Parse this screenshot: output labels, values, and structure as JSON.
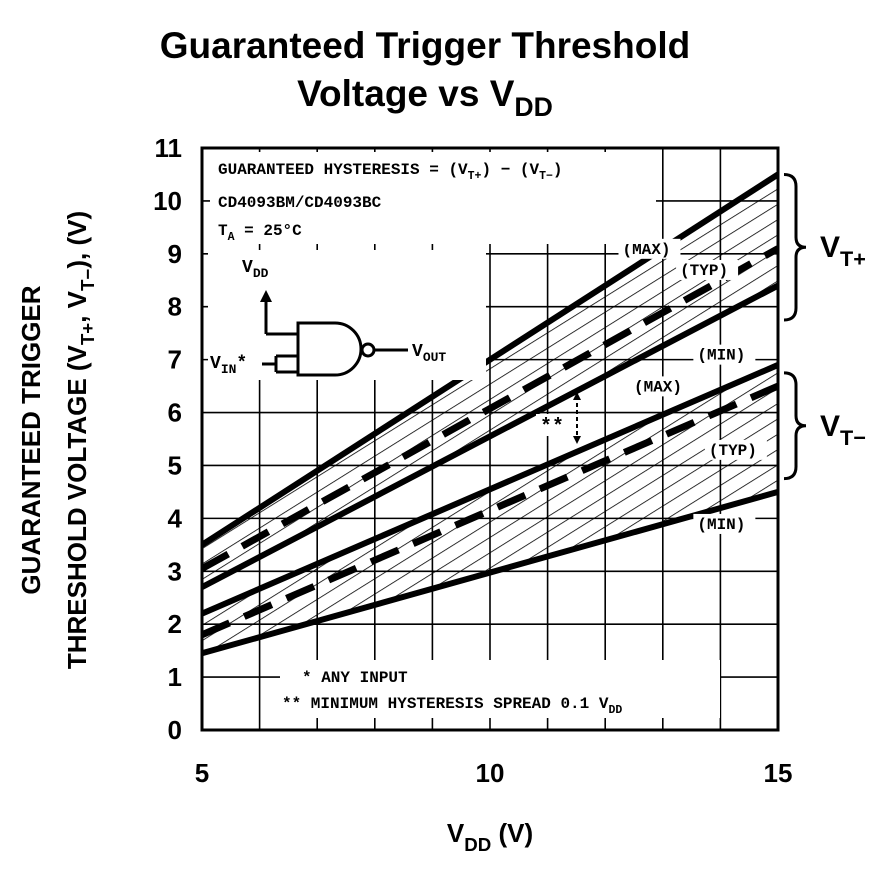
{
  "chart_data": {
    "type": "line",
    "title_line1": "Guaranteed Trigger Threshold",
    "title_line2_main": "Voltage vs V",
    "title_line2_sub": "DD",
    "xlabel_main": "V",
    "xlabel_sub": "DD",
    "xlabel_unit": " (V)",
    "ylabel_line1": "GUARANTEED TRIGGER",
    "ylabel_line2_a": "THRESHOLD VOLTAGE (V",
    "ylabel_line2_b": "T+",
    "ylabel_line2_c": ", V",
    "ylabel_line2_d": "T−",
    "ylabel_line2_e": "), (V)",
    "xlim": [
      5,
      15
    ],
    "ylim": [
      0,
      11
    ],
    "x_ticks": [
      5,
      10,
      15
    ],
    "x_gridlines": [
      5,
      6,
      7,
      8,
      9,
      10,
      11,
      12,
      13,
      14,
      15
    ],
    "y_ticks": [
      0,
      1,
      2,
      3,
      4,
      5,
      6,
      7,
      8,
      9,
      10,
      11
    ],
    "grid": true,
    "x": [
      5,
      15
    ],
    "series": [
      {
        "name": "(MAX)",
        "group": "VT+",
        "style": "solid",
        "values": [
          3.5,
          10.5
        ]
      },
      {
        "name": "(TYP)",
        "group": "VT+",
        "style": "dashed",
        "values": [
          3.05,
          9.1
        ]
      },
      {
        "name": "(MIN)",
        "group": "VT+",
        "style": "solid",
        "values": [
          2.7,
          8.4
        ]
      },
      {
        "name": "(MAX)",
        "group": "VT−",
        "style": "solid",
        "values": [
          2.2,
          6.9
        ]
      },
      {
        "name": "(TYP)",
        "group": "VT−",
        "style": "dashed",
        "values": [
          1.8,
          6.5
        ]
      },
      {
        "name": "(MIN)",
        "group": "VT−",
        "style": "solid",
        "values": [
          1.45,
          4.5
        ]
      }
    ],
    "curve_labels": [
      {
        "text": "(MAX)",
        "x": 12.3,
        "y": 9.0
      },
      {
        "text": "(TYP)",
        "x": 13.3,
        "y": 8.6
      },
      {
        "text": "(MIN)",
        "x": 13.6,
        "y": 7.0
      },
      {
        "text": "(MAX)",
        "x": 12.5,
        "y": 6.4
      },
      {
        "text": "(TYP)",
        "x": 13.8,
        "y": 5.2
      },
      {
        "text": "(MIN)",
        "x": 13.6,
        "y": 3.8
      }
    ],
    "band_labels": [
      {
        "main": "V",
        "sub": "T+",
        "y_range": [
          7.75,
          10.5
        ]
      },
      {
        "main": "V",
        "sub": "T−",
        "y_range": [
          4.75,
          6.75
        ]
      }
    ],
    "annotations": {
      "hysteresis": {
        "a": "GUARANTEED HYSTERESIS = (V",
        "b": "T+",
        "c": ") − (V",
        "d": "T−",
        "e": ")"
      },
      "part": "CD4093BM/CD4093BC",
      "temp": {
        "a": "T",
        "b": "A",
        "c": " = 25°C"
      },
      "vdd": {
        "a": "V",
        "b": "DD"
      },
      "vin": {
        "a": "V",
        "b": "IN",
        "c": "*"
      },
      "vout": {
        "a": "V",
        "b": "OUT"
      },
      "double_star": "**",
      "note1": "* ANY INPUT",
      "note2": {
        "a": "** MINIMUM HYSTERESIS SPREAD 0.1 V",
        "b": "DD"
      }
    }
  }
}
